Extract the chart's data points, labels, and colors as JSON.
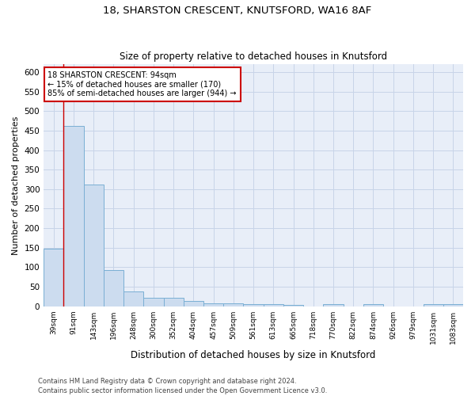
{
  "title1": "18, SHARSTON CRESCENT, KNUTSFORD, WA16 8AF",
  "title2": "Size of property relative to detached houses in Knutsford",
  "xlabel": "Distribution of detached houses by size in Knutsford",
  "ylabel": "Number of detached properties",
  "footnote1": "Contains HM Land Registry data © Crown copyright and database right 2024.",
  "footnote2": "Contains public sector information licensed under the Open Government Licence v3.0.",
  "categories": [
    "39sqm",
    "91sqm",
    "143sqm",
    "196sqm",
    "248sqm",
    "300sqm",
    "352sqm",
    "404sqm",
    "457sqm",
    "509sqm",
    "561sqm",
    "613sqm",
    "665sqm",
    "718sqm",
    "770sqm",
    "822sqm",
    "874sqm",
    "926sqm",
    "979sqm",
    "1031sqm",
    "1083sqm"
  ],
  "values": [
    148,
    462,
    311,
    93,
    37,
    22,
    22,
    13,
    8,
    8,
    6,
    5,
    4,
    0,
    5,
    0,
    6,
    0,
    0,
    5,
    5
  ],
  "bar_color": "#ccdcef",
  "bar_edge_color": "#7aafd4",
  "grid_color": "#c8d4e8",
  "bg_color": "#e8eef8",
  "vline_color": "#cc0000",
  "vline_x_index": 1,
  "annotation_line1": "18 SHARSTON CRESCENT: 94sqm",
  "annotation_line2": "← 15% of detached houses are smaller (170)",
  "annotation_line3": "85% of semi-detached houses are larger (944) →",
  "annotation_box_color": "white",
  "annotation_box_edge": "#cc0000",
  "ylim": [
    0,
    620
  ],
  "yticks": [
    0,
    50,
    100,
    150,
    200,
    250,
    300,
    350,
    400,
    450,
    500,
    550,
    600
  ]
}
